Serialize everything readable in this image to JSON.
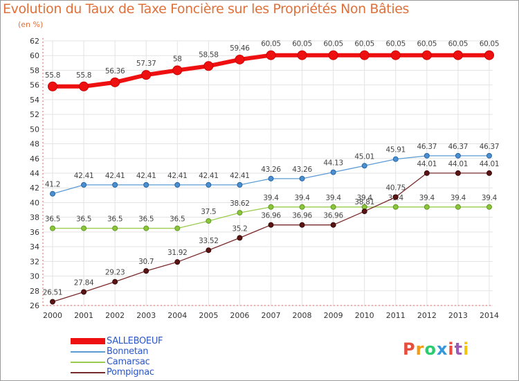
{
  "chart_data": {
    "type": "line",
    "title": "Evolution du Taux de Taxe Foncière sur les Propriétés Non Bâties",
    "subtitle": "(en %)",
    "xlabel": "",
    "ylabel": "",
    "ylim": [
      26,
      62
    ],
    "ytick_step": 2,
    "categories": [
      "2000",
      "2001",
      "2002",
      "2003",
      "2004",
      "2005",
      "2006",
      "2007",
      "2008",
      "2009",
      "2010",
      "2011",
      "2012",
      "2013",
      "2014"
    ],
    "series": [
      {
        "name": "SALLEBOEUF",
        "color": "#ee1010",
        "values": [
          55.8,
          55.8,
          56.36,
          57.37,
          58,
          58.58,
          59.46,
          60.05,
          60.05,
          60.05,
          60.05,
          60.05,
          60.05,
          60.05,
          60.05
        ],
        "labels": [
          "55.8",
          "55.8",
          "56.36",
          "57.37",
          "58",
          "58.58",
          "59.46",
          "60.05",
          "60.05",
          "60.05",
          "60.05",
          "60.05",
          "60.05",
          "60.05",
          "60.05"
        ]
      },
      {
        "name": "Bonnetan",
        "color": "#5b9bd5",
        "values": [
          41.2,
          42.41,
          42.41,
          42.41,
          42.41,
          42.41,
          42.41,
          43.26,
          43.26,
          44.13,
          45.01,
          45.91,
          46.37,
          46.37,
          46.37
        ],
        "labels": [
          "41.2",
          "42.41",
          "42.41",
          "42.41",
          "42.41",
          "42.41",
          "42.41",
          "43.26",
          "43.26",
          "44.13",
          "45.01",
          "45.91",
          "46.37",
          "46.37",
          "46.37"
        ]
      },
      {
        "name": "Camarsac",
        "color": "#9acd4d",
        "values": [
          36.5,
          36.5,
          36.5,
          36.5,
          36.5,
          37.5,
          38.62,
          39.4,
          39.4,
          39.4,
          39.4,
          39.4,
          39.4,
          39.4,
          39.4
        ],
        "labels": [
          "36.5",
          "36.5",
          "36.5",
          "36.5",
          "36.5",
          "37.5",
          "38.62",
          "39.4",
          "39.4",
          "39.4",
          "39.4",
          "39.4",
          "39.4",
          "39.4",
          "39.4"
        ]
      },
      {
        "name": "Pompignac",
        "color": "#7a2a2a",
        "values": [
          26.51,
          27.84,
          29.23,
          30.7,
          31.92,
          33.52,
          35.2,
          36.96,
          36.96,
          36.96,
          38.81,
          40.75,
          44.01,
          44.01,
          44.01
        ],
        "labels": [
          "26.51",
          "27.84",
          "29.23",
          "30.7",
          "31.92",
          "33.52",
          "35.2",
          "36.96",
          "36.96",
          "36.96",
          "38.81",
          "40.75",
          "44.01",
          "44.01",
          "44.01"
        ]
      }
    ],
    "legend": [
      "SALLEBOEUF",
      "Bonnetan",
      "Camarsac",
      "Pompignac"
    ]
  },
  "logo": {
    "text": "Proxiti",
    "colors": [
      "#e84c3d",
      "#f39c12",
      "#2ecc71",
      "#3498db",
      "#e84c3d",
      "#9b59b6",
      "#f1c40f"
    ]
  }
}
